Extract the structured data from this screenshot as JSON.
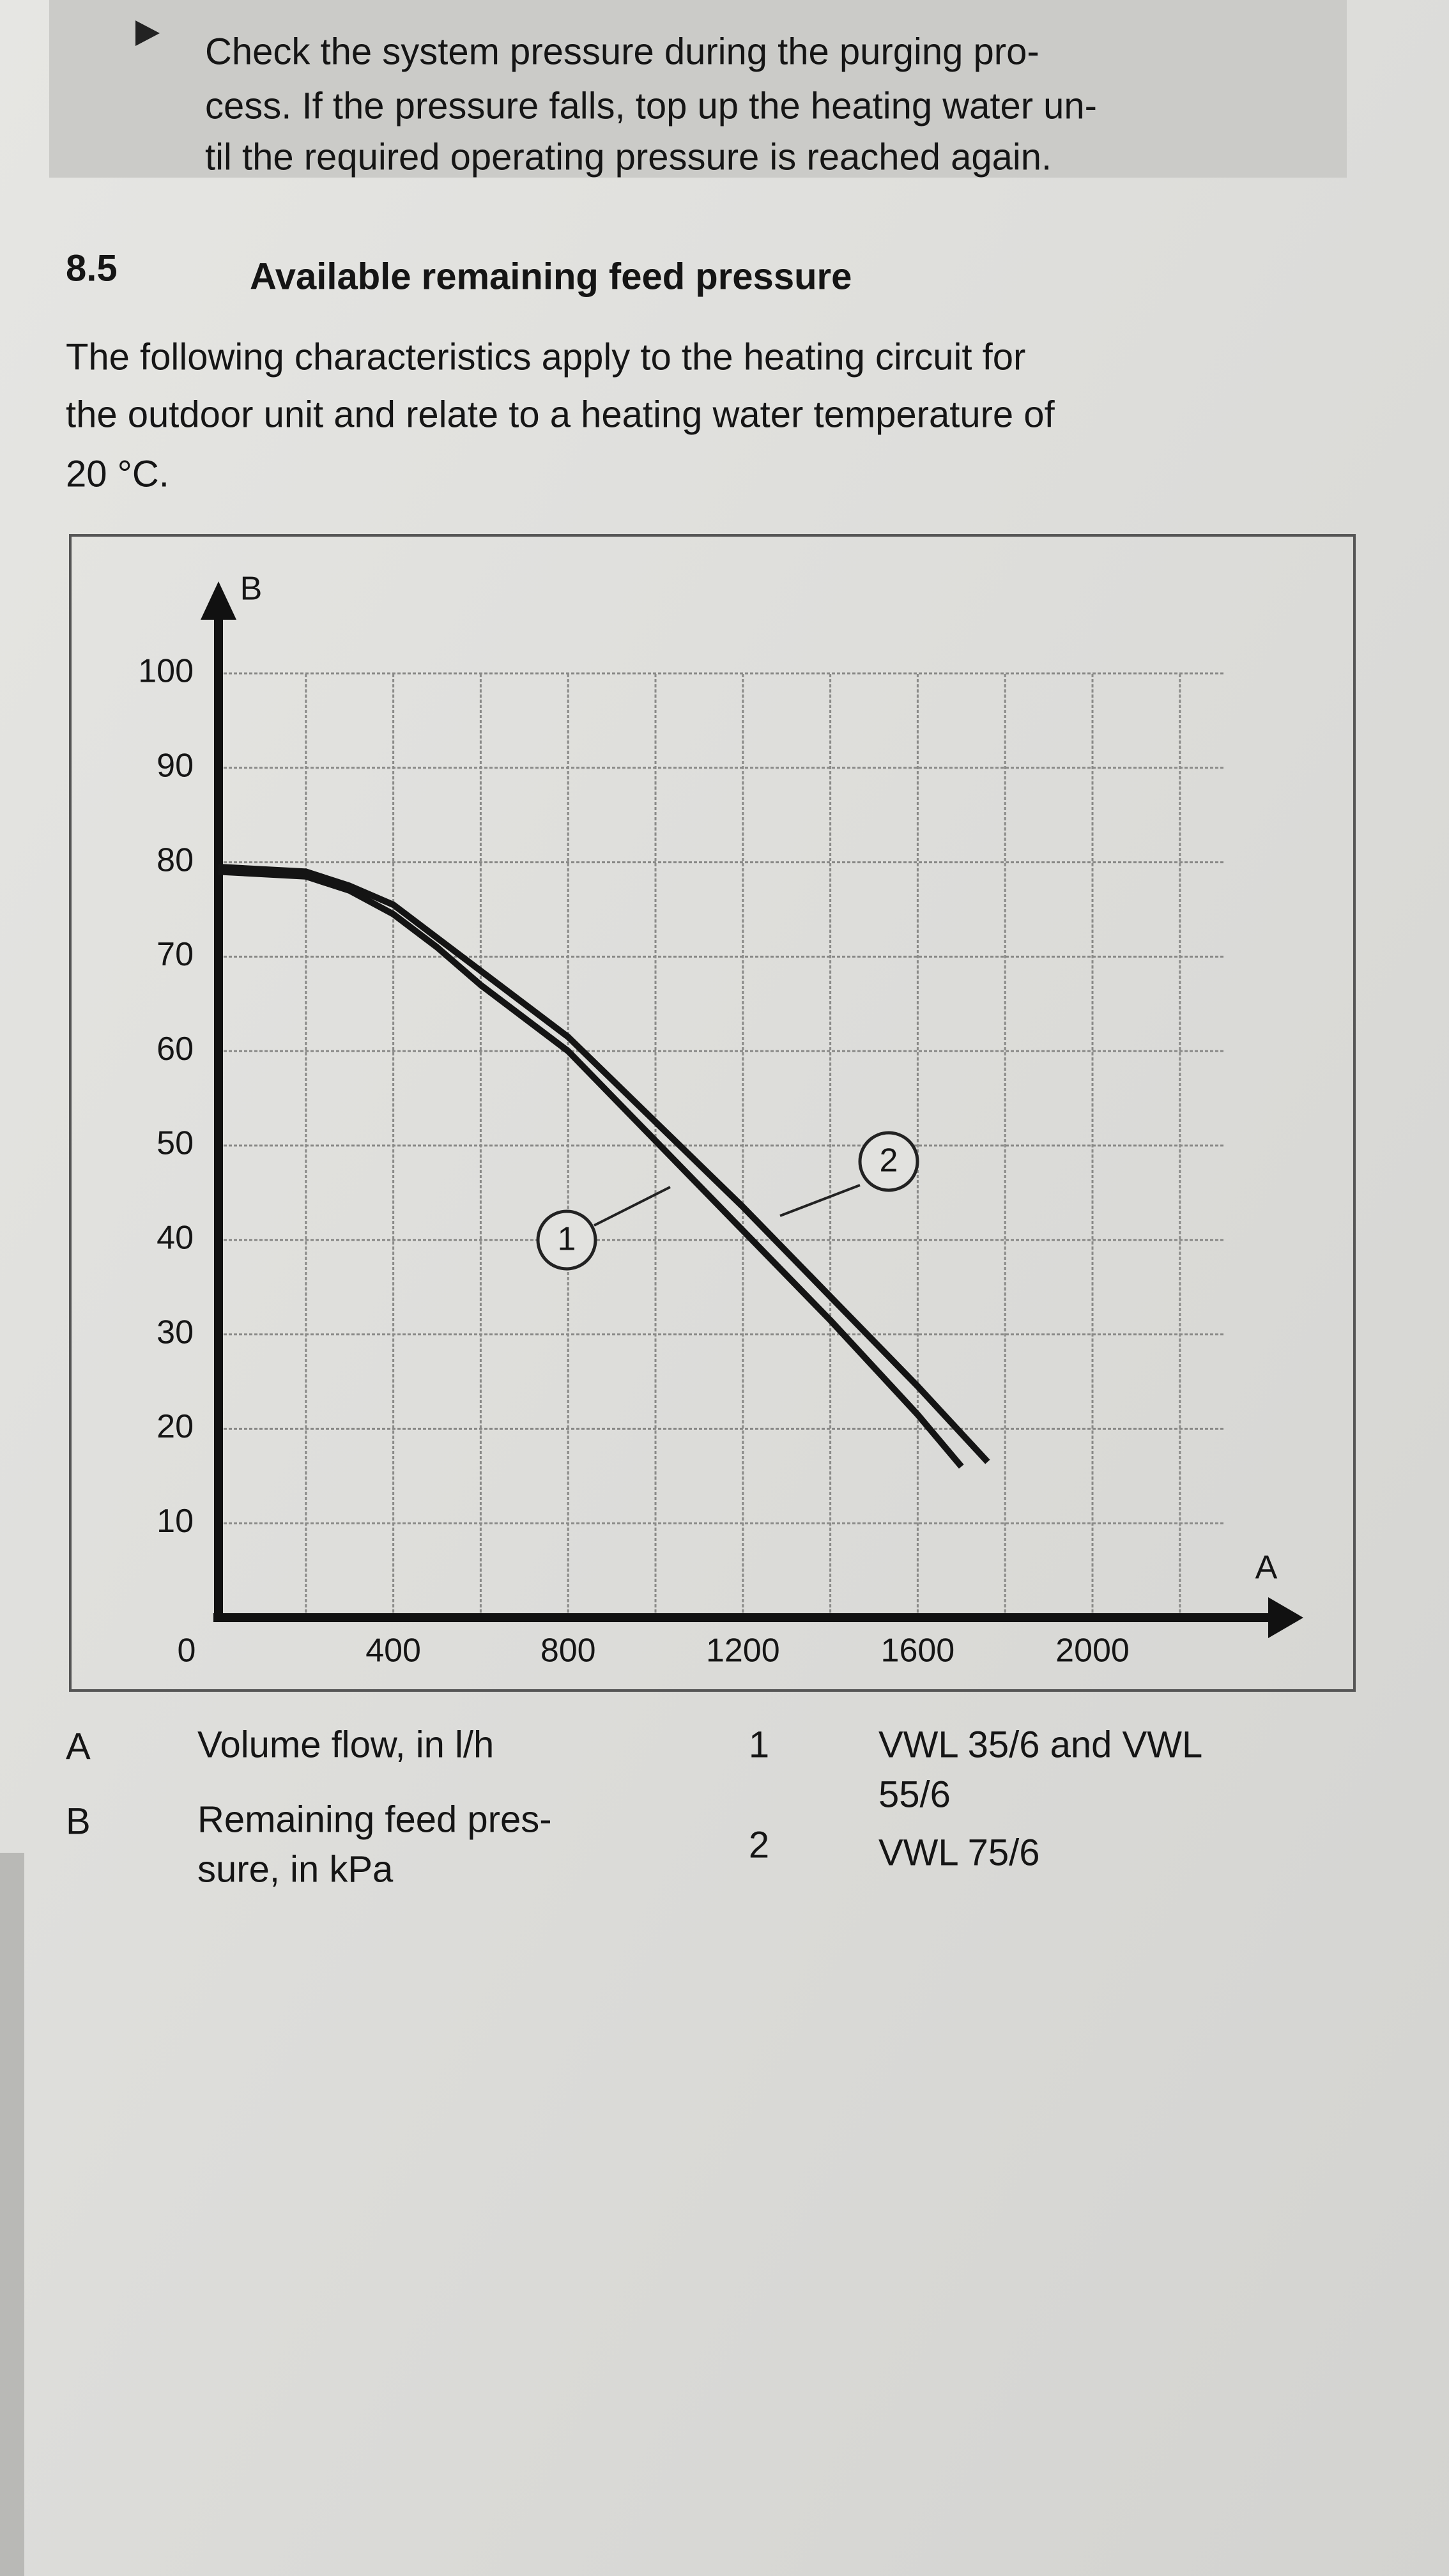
{
  "notice": {
    "lines": [
      "Check the system pressure during the purging pro-",
      "cess. If the pressure falls, top up the heating water un-",
      "til the required operating pressure is reached again."
    ]
  },
  "section": {
    "number": "8.5",
    "title": "Available remaining feed pressure",
    "paragraph": [
      "The following characteristics apply to the heating circuit for",
      "the outdoor unit and relate to a heating water temperature of",
      "20 °C."
    ]
  },
  "chart_data": {
    "type": "line",
    "xlabel": "A",
    "ylabel": "B",
    "xlabel_description": [
      "Volume flow, in l/h"
    ],
    "ylabel_description": [
      "Remaining feed pres-",
      "sure, in kPa"
    ],
    "xlim": [
      0,
      2300
    ],
    "ylim": [
      0,
      100
    ],
    "xticks": [
      0,
      400,
      800,
      1200,
      1600,
      2000
    ],
    "minor_xticks": [
      200,
      600,
      1000,
      1400,
      1800,
      2200
    ],
    "yticks": [
      10,
      20,
      30,
      40,
      50,
      60,
      70,
      80,
      90,
      100
    ],
    "grid": true,
    "series": [
      {
        "name": "1",
        "description": [
          "VWL 35/6 and VWL",
          "55/6"
        ],
        "color": "#141414",
        "x": [
          0,
          200,
          300,
          400,
          500,
          600,
          800,
          1000,
          1200,
          1400,
          1600,
          1700
        ],
        "values": [
          79,
          78.5,
          77,
          74.5,
          71,
          67,
          60,
          50.5,
          41,
          31.5,
          21.5,
          16
        ]
      },
      {
        "name": "2",
        "description": [
          "VWL 75/6"
        ],
        "color": "#141414",
        "x": [
          0,
          200,
          300,
          400,
          500,
          600,
          800,
          1000,
          1200,
          1400,
          1600,
          1760
        ],
        "values": [
          79.5,
          79,
          77.5,
          75.5,
          72,
          68.5,
          61.5,
          52.5,
          43.5,
          34,
          24.5,
          16.5
        ]
      }
    ]
  }
}
